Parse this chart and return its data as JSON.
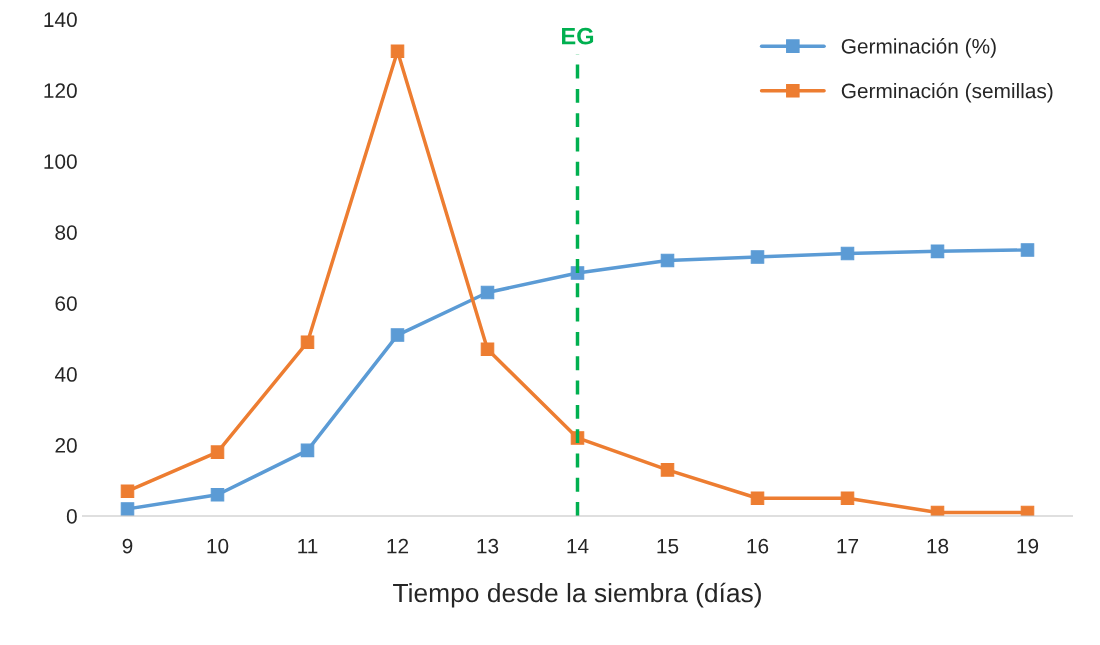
{
  "chart_data": {
    "type": "line",
    "xlabel": "Tiempo desde la siembra (días)",
    "x": [
      9,
      10,
      11,
      12,
      13,
      14,
      15,
      16,
      17,
      18,
      19
    ],
    "xlim": [
      8.5,
      19.5
    ],
    "xticks": [
      9,
      10,
      11,
      12,
      13,
      14,
      15,
      16,
      17,
      18,
      19
    ],
    "ylim": [
      0,
      140
    ],
    "yticks": [
      0,
      20,
      40,
      60,
      80,
      100,
      120,
      140
    ],
    "series": [
      {
        "name": "Germinación (%)",
        "color": "#5b9bd5",
        "values": [
          2,
          6,
          18.5,
          51,
          63,
          68.5,
          72,
          73,
          74,
          74.6,
          75
        ]
      },
      {
        "name": "Germinación (semillas)",
        "color": "#ed7d31",
        "values": [
          7,
          18,
          49,
          131,
          47,
          22,
          13,
          5,
          5,
          1,
          1
        ]
      }
    ],
    "ref_lines": [
      {
        "axis": "x",
        "value": 14,
        "label": "EG",
        "color": "#00b050",
        "line_style": "dashed"
      }
    ],
    "marker": "square",
    "line_style": "solid",
    "legend": "top right",
    "grid": false
  }
}
